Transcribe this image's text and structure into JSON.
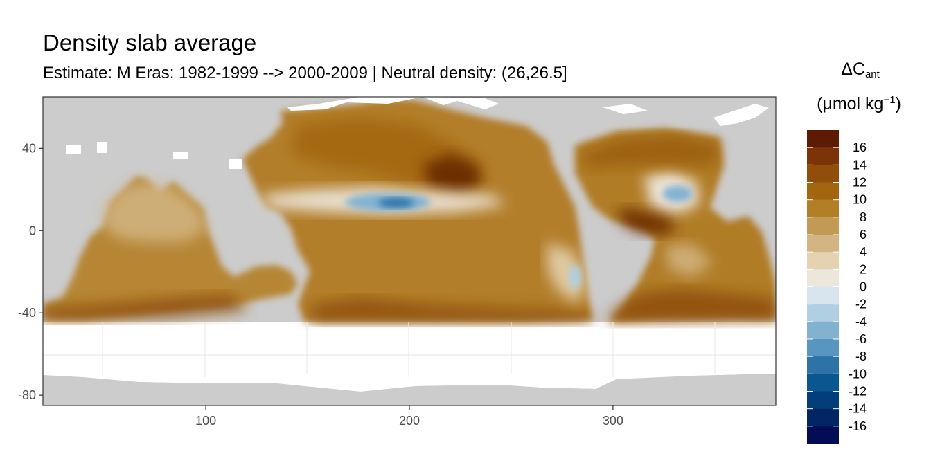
{
  "title": "Density slab average",
  "subtitle": "Estimate: M Eras: 1982-1999 --> 2000-2009 | Neutral density: (26,26.5]",
  "legend": {
    "title_main": "ΔC",
    "title_sub": "ant",
    "unit_pre": "(μmol kg",
    "unit_sup": "−1",
    "unit_post": ")"
  },
  "chart_data": {
    "type": "heatmap",
    "title": "Density slab average",
    "subtitle": "Estimate: M Eras: 1982-1999 --> 2000-2009 | Neutral density: (26,26.5]",
    "xlabel": "",
    "ylabel": "",
    "x_ticks": [
      100,
      200,
      300
    ],
    "y_ticks": [
      40,
      0,
      -40,
      -80
    ],
    "xlim": [
      20,
      380
    ],
    "ylim": [
      -85,
      65
    ],
    "grid": true,
    "legend_position": "right",
    "colorbar": {
      "breaks": [
        16,
        14,
        12,
        10,
        8,
        6,
        4,
        2,
        0,
        -2,
        -4,
        -6,
        -8,
        -10,
        -12,
        -14,
        -16
      ],
      "colors": [
        "#5e1b04",
        "#7b3407",
        "#8f4f0b",
        "#a3660f",
        "#b27e26",
        "#c29a56",
        "#d3b583",
        "#e4d2b0",
        "#ede6da",
        "#d9e5ee",
        "#b1cfe2",
        "#83b2d1",
        "#5895bf",
        "#2e73a7",
        "#0a578f",
        "#043e7a",
        "#022663",
        "#020d55"
      ]
    },
    "colors": {
      "land": "#cccccc",
      "no_data": "#ffffff",
      "panel_border": "#333333",
      "grid": "#ebebeb"
    }
  }
}
